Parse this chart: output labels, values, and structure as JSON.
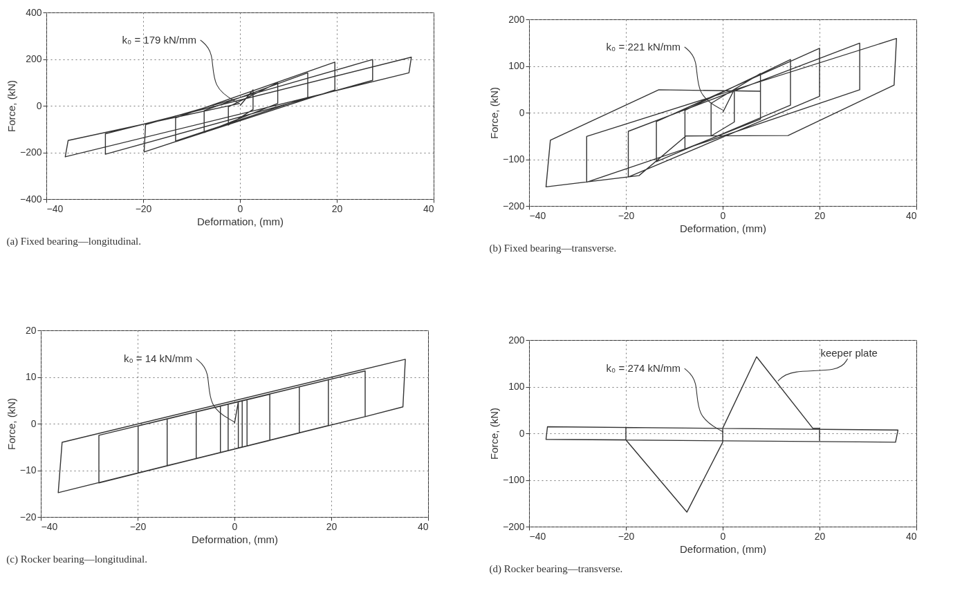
{
  "chart_data": [
    {
      "type": "line",
      "title": "(a) Fixed bearing—longitudinal.",
      "xlabel": "Deformation, (mm)",
      "ylabel": "Force, (kN)",
      "xlim": [
        -40,
        40
      ],
      "ylim": [
        -400,
        400
      ],
      "xticks": [
        -40,
        -20,
        0,
        20,
        40
      ],
      "yticks": [
        -400,
        -200,
        0,
        200,
        400
      ],
      "grid": true,
      "annotations": [
        {
          "text": "k₀ = 179 kN/mm",
          "x": -0.2,
          "y": 10
        }
      ],
      "series": [
        {
          "color": "#333333",
          "x": [
            0,
            2.7,
            2.7,
            -2.4,
            -2.4,
            7.8,
            7.8,
            -7.4,
            -7.4,
            14,
            14,
            -13.3,
            -13.3,
            19.6,
            19.6,
            -19.8,
            -19.5,
            27.4,
            27.4,
            -27.8,
            -27.8,
            35.4,
            34.9,
            -36.1,
            -35.5,
            0
          ],
          "values": [
            0,
            68,
            -16,
            -83,
            -5,
            99,
            10,
            -115,
            -21,
            141,
            36,
            -151,
            -52,
            187,
            68,
            -198,
            -81,
            198,
            109,
            -208,
            -120,
            208,
            141,
            -219,
            -149,
            10
          ]
        }
      ]
    },
    {
      "type": "line",
      "title": "(b) Fixed bearing—transverse.",
      "xlabel": "Deformation, (mm)",
      "ylabel": "Force, (kN)",
      "xlim": [
        -40,
        40
      ],
      "ylim": [
        -200,
        200
      ],
      "xticks": [
        -40,
        -20,
        0,
        20,
        40
      ],
      "yticks": [
        -200,
        -100,
        0,
        100,
        200
      ],
      "grid": true,
      "annotations": [
        {
          "text": "k₀ = 221 kN/mm",
          "x": 0.1,
          "y": 5
        }
      ],
      "series": [
        {
          "color": "#333333",
          "x": [
            0,
            2.4,
            2.4,
            -2.4,
            -2.4,
            7.8,
            7.8,
            -7.8,
            -7.8,
            14,
            14,
            -13.7,
            -13.7,
            20,
            20,
            -19.5,
            -19.5,
            28.3,
            28.3,
            -28.1,
            -28.1,
            35.9,
            35.4,
            13.5,
            -7.6,
            -17.3,
            -36.5,
            -35.6,
            -13.2,
            7.8
          ],
          "values": [
            0,
            50,
            -20,
            -50,
            20,
            84,
            -14,
            -78,
            5,
            114,
            16,
            -105,
            -19,
            138,
            35,
            -138,
            -40,
            149,
            49,
            -149,
            -51,
            159,
            59,
            -49,
            -50,
            -135,
            -159,
            -59,
            49,
            46
          ]
        }
      ]
    },
    {
      "type": "line",
      "title": "(c) Rocker bearing—longitudinal.",
      "xlabel": "Deformation, (mm)",
      "ylabel": "Force, (kN)",
      "xlim": [
        -40,
        40
      ],
      "ylim": [
        -20,
        20
      ],
      "xticks": [
        -40,
        -20,
        0,
        20,
        40
      ],
      "yticks": [
        -20,
        -10,
        0,
        10,
        20
      ],
      "grid": true,
      "annotations": [
        {
          "text": "k₀ = 14 kN/mm",
          "x": 0.1,
          "y": 0.3
        }
      ],
      "series": [
        {
          "color": "#333333",
          "x": [
            0,
            0.8,
            0.8,
            -1.3,
            -1.3,
            1.6,
            1.6,
            -2.9,
            -2.9,
            2.6,
            2.6,
            -7.9,
            -7.9,
            7.3,
            7.3,
            -13.9,
            -13.9,
            13.4,
            13.4,
            -19.9,
            -19.9,
            19.4,
            19.4,
            -28,
            -28,
            27,
            27,
            -36.4,
            -35.6,
            35.3,
            34.8,
            27
          ],
          "values": [
            0,
            4.7,
            -5.2,
            -5.8,
            4.2,
            4.9,
            -5,
            -6.2,
            3.8,
            5.2,
            -4.8,
            -7.5,
            2.5,
            6.3,
            -3.6,
            -9,
            1,
            7.9,
            -2,
            -10.6,
            -0.5,
            9.4,
            -0.4,
            -12.7,
            -2.5,
            11.3,
            1.5,
            -14.8,
            -4,
            13.8,
            3.6,
            1.5
          ]
        }
      ]
    },
    {
      "type": "line",
      "title": "(d) Rocker bearing—transverse.",
      "xlabel": "Deformation, (mm)",
      "ylabel": "Force, (kN)",
      "xlim": [
        -40,
        40
      ],
      "ylim": [
        -200,
        200
      ],
      "xticks": [
        -40,
        -20,
        0,
        20,
        40
      ],
      "yticks": [
        -200,
        -100,
        0,
        100,
        200
      ],
      "grid": true,
      "annotations": [
        {
          "text": "k₀ = 274 kN/mm",
          "x": 0.1,
          "y": 3
        },
        {
          "text": "keeper plate",
          "x": 11.4,
          "y": 112
        }
      ],
      "series": [
        {
          "color": "#333333",
          "x": [
            -36.5,
            -36.2,
            36.2,
            35.7,
            -36.5,
            -20,
            -20,
            -20,
            -7.4,
            0,
            0,
            7,
            18.6,
            20,
            20
          ],
          "values": [
            -13,
            14,
            7,
            -19,
            -13,
            -14,
            13,
            -14,
            -169,
            -19,
            11,
            164,
            11,
            11,
            -16
          ]
        }
      ]
    }
  ]
}
